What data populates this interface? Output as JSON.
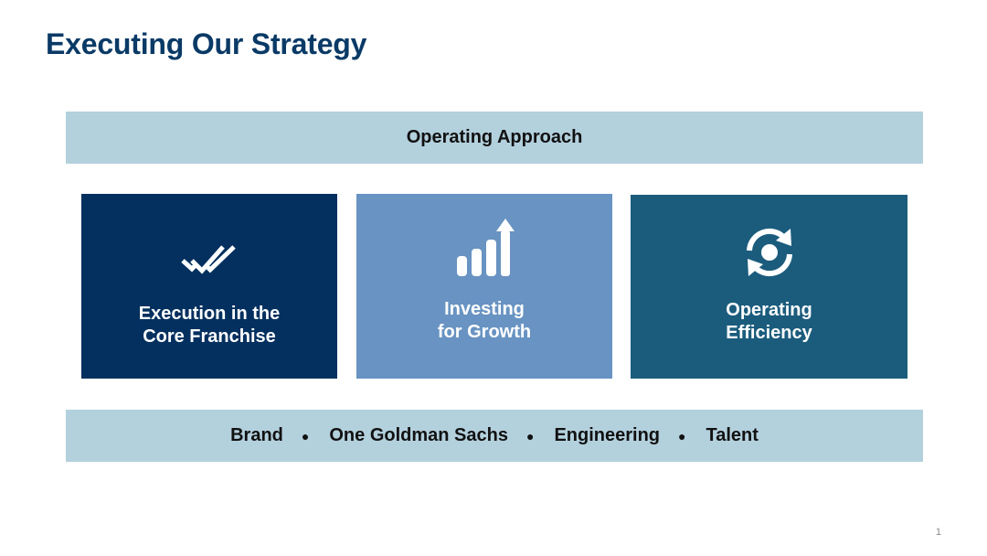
{
  "slide": {
    "title": "Executing Our Strategy",
    "page_number": "1"
  },
  "top_band": {
    "label": "Operating Approach"
  },
  "cards": [
    {
      "label": "Execution in the\nCore Franchise",
      "icon": "double-check-icon",
      "color": "#03305f"
    },
    {
      "label": "Investing\nfor Growth",
      "icon": "growth-bars-icon",
      "color": "#6893c2"
    },
    {
      "label": "Operating\nEfficiency",
      "icon": "cycle-icon",
      "color": "#1b5c7d"
    }
  ],
  "bottom_band": {
    "items": [
      "Brand",
      "One Goldman Sachs",
      "Engineering",
      "Talent"
    ],
    "separator": "●"
  },
  "colors": {
    "title": "#0a3a66",
    "band": "#b3d0dd"
  }
}
